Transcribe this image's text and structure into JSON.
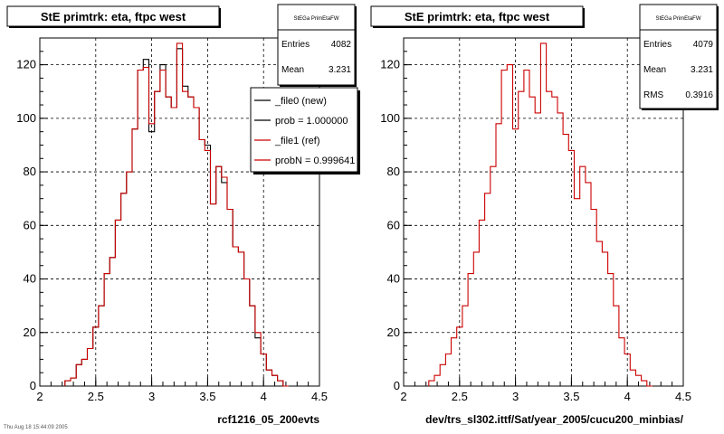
{
  "canvas_timestamp": "Thu Aug 18 15:44:09 2005",
  "legend": {
    "entries": [
      {
        "label": "_file0 (new)",
        "color": "#000000"
      },
      {
        "label": "prob = 1.000000",
        "color": "#000000"
      },
      {
        "label": "_file1 (ref)",
        "color": "#cc0000"
      },
      {
        "label": "probN = 0.999641",
        "color": "#cc0000"
      }
    ]
  },
  "colors": {
    "new": "#000000",
    "ref": "#cc0000",
    "frame": "#000000",
    "grid": "#000000"
  },
  "chart_data": [
    {
      "type": "line",
      "title": "StE primtrk: eta, ftpc west",
      "xlabel": "rcf1216_05_200evts",
      "ylabel": "",
      "stats": {
        "name": "StEGa PrimEtaFW",
        "rows": [
          {
            "label": "Entries",
            "value": "4082"
          },
          {
            "label": "Mean",
            "value": "3.231"
          }
        ]
      },
      "xlim": [
        2,
        4.5
      ],
      "ylim": [
        0,
        130
      ],
      "xticks": [
        "2",
        "2.5",
        "3",
        "3.5",
        "4",
        "4.5"
      ],
      "yticks": [
        "0",
        "20",
        "40",
        "60",
        "80",
        "100",
        "120"
      ],
      "grid": true,
      "x": [
        2.25,
        2.3,
        2.35,
        2.4,
        2.45,
        2.5,
        2.55,
        2.6,
        2.65,
        2.7,
        2.75,
        2.8,
        2.85,
        2.9,
        2.95,
        3.0,
        3.05,
        3.1,
        3.15,
        3.2,
        3.25,
        3.3,
        3.35,
        3.4,
        3.45,
        3.5,
        3.55,
        3.6,
        3.65,
        3.7,
        3.75,
        3.8,
        3.85,
        3.9,
        3.95,
        4.0,
        4.05,
        4.1,
        4.15,
        4.2
      ],
      "series": [
        {
          "name": "_file0 (new)",
          "values": [
            2,
            3,
            8,
            10,
            14,
            22,
            30,
            42,
            48,
            62,
            72,
            80,
            96,
            118,
            122,
            95,
            110,
            120,
            108,
            104,
            126,
            112,
            108,
            104,
            92,
            90,
            68,
            82,
            76,
            66,
            52,
            50,
            40,
            30,
            18,
            12,
            6,
            4,
            2,
            0
          ]
        },
        {
          "name": "_file1 (ref)",
          "values": [
            2,
            3,
            8,
            10,
            14,
            22,
            30,
            42,
            48,
            62,
            72,
            80,
            96,
            118,
            119,
            98,
            110,
            118,
            108,
            104,
            128,
            110,
            108,
            104,
            92,
            88,
            68,
            82,
            78,
            66,
            52,
            50,
            40,
            30,
            20,
            12,
            6,
            4,
            2,
            0
          ]
        }
      ]
    },
    {
      "type": "line",
      "title": "StE primtrk: eta, ftpc west",
      "xlabel": "dev/trs_sl302.ittf/Sat/year_2005/cucu200_minbias/",
      "ylabel": "",
      "stats": {
        "name": "StEGa PrimEtaFW",
        "rows": [
          {
            "label": "Entries",
            "value": "4079"
          },
          {
            "label": "Mean",
            "value": "3.231"
          },
          {
            "label": "RMS",
            "value": "0.3916"
          }
        ]
      },
      "xlim": [
        2,
        4.5
      ],
      "ylim": [
        0,
        130
      ],
      "xticks": [
        "2",
        "2.5",
        "3",
        "3.5",
        "4",
        "4.5"
      ],
      "yticks": [
        "0",
        "20",
        "40",
        "60",
        "80",
        "100",
        "120"
      ],
      "grid": true,
      "x": [
        2.25,
        2.3,
        2.35,
        2.4,
        2.45,
        2.5,
        2.55,
        2.6,
        2.65,
        2.7,
        2.75,
        2.8,
        2.85,
        2.9,
        2.95,
        3.0,
        3.05,
        3.1,
        3.15,
        3.2,
        3.25,
        3.3,
        3.35,
        3.4,
        3.45,
        3.5,
        3.55,
        3.6,
        3.65,
        3.7,
        3.75,
        3.8,
        3.85,
        3.9,
        3.95,
        4.0,
        4.05,
        4.1,
        4.15,
        4.2
      ],
      "series": [
        {
          "name": "_file1 (ref)",
          "values": [
            2,
            4,
            8,
            12,
            18,
            22,
            30,
            42,
            50,
            62,
            72,
            82,
            98,
            118,
            120,
            96,
            110,
            118,
            108,
            102,
            128,
            110,
            108,
            102,
            94,
            88,
            70,
            82,
            76,
            66,
            54,
            50,
            42,
            30,
            18,
            12,
            6,
            4,
            2,
            0
          ]
        }
      ]
    }
  ]
}
